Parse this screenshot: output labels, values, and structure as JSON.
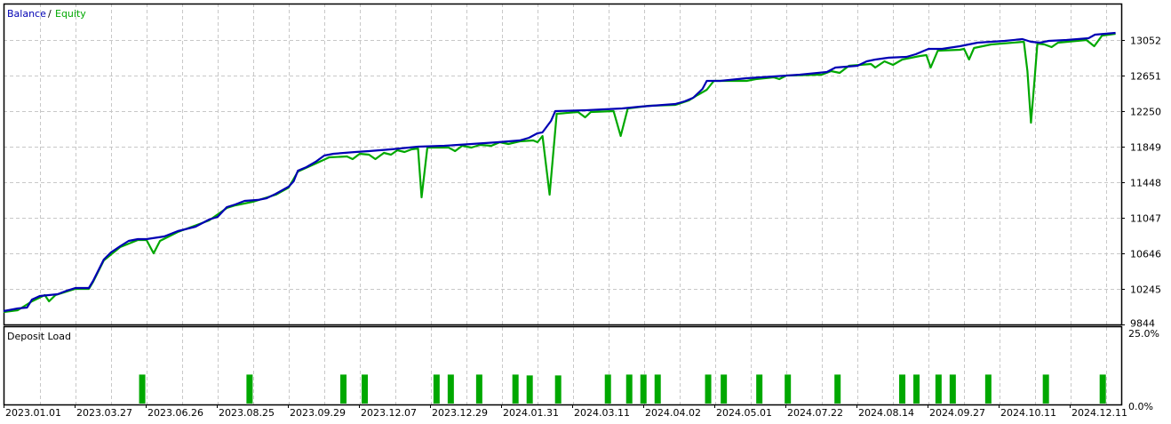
{
  "chart_data": [
    {
      "type": "line",
      "legend": {
        "items": [
          "Balance",
          "Equity"
        ],
        "separator": "/",
        "placement": "top-left"
      },
      "x_tick_labels": [
        "2023.01.01",
        "2023.03.27",
        "2023.06.26",
        "2023.08.25",
        "2023.09.29",
        "2023.12.07",
        "2023.12.29",
        "2024.01.31",
        "2024.03.11",
        "2024.04.02",
        "2024.05.01",
        "2024.07.22",
        "2024.08.14",
        "2024.09.27",
        "2024.10.11",
        "2024.12.11"
      ],
      "y_tick_labels": [
        "13052",
        "12651",
        "12250",
        "11849",
        "11448",
        "11047",
        "10646",
        "10245",
        "9844"
      ],
      "y_ticks": [
        13052,
        12651,
        12250,
        11849,
        11448,
        11047,
        10646,
        10245,
        9844
      ],
      "ylim": [
        9844,
        13463
      ],
      "xlim": [
        0,
        15.72
      ],
      "grid": true,
      "colors": {
        "Balance": "#0000b4",
        "Equity": "#00a800",
        "grid": "#c8c8c8"
      },
      "series": [
        {
          "name": "Balance",
          "points": [
            [
              0,
              9994
            ],
            [
              0.2,
              10024
            ],
            [
              0.33,
              10034
            ],
            [
              0.4,
              10125
            ],
            [
              0.51,
              10165
            ],
            [
              0.76,
              10185
            ],
            [
              0.89,
              10225
            ],
            [
              1.01,
              10255
            ],
            [
              1.2,
              10255
            ],
            [
              1.26,
              10335
            ],
            [
              1.41,
              10576
            ],
            [
              1.51,
              10656
            ],
            [
              1.64,
              10726
            ],
            [
              1.76,
              10786
            ],
            [
              1.89,
              10806
            ],
            [
              2.01,
              10806
            ],
            [
              2.26,
              10836
            ],
            [
              2.45,
              10897
            ],
            [
              2.7,
              10947
            ],
            [
              2.89,
              11027
            ],
            [
              3.01,
              11057
            ],
            [
              3.14,
              11167
            ],
            [
              3.26,
              11197
            ],
            [
              3.39,
              11237
            ],
            [
              3.58,
              11248
            ],
            [
              3.7,
              11268
            ],
            [
              3.83,
              11318
            ],
            [
              4.01,
              11398
            ],
            [
              4.08,
              11458
            ],
            [
              4.14,
              11578
            ],
            [
              4.26,
              11618
            ],
            [
              4.39,
              11679
            ],
            [
              4.51,
              11749
            ],
            [
              4.64,
              11769
            ],
            [
              4.95,
              11789
            ],
            [
              5.14,
              11799
            ],
            [
              5.45,
              11819
            ],
            [
              5.83,
              11849
            ],
            [
              6.2,
              11859
            ],
            [
              6.58,
              11879
            ],
            [
              6.95,
              11899
            ],
            [
              7.26,
              11919
            ],
            [
              7.39,
              11949
            ],
            [
              7.51,
              12000
            ],
            [
              7.58,
              12010
            ],
            [
              7.7,
              12140
            ],
            [
              7.76,
              12250
            ],
            [
              8.2,
              12260
            ],
            [
              8.7,
              12280
            ],
            [
              8.95,
              12300
            ],
            [
              9.45,
              12330
            ],
            [
              9.58,
              12360
            ],
            [
              9.7,
              12400
            ],
            [
              9.83,
              12501
            ],
            [
              9.89,
              12591
            ],
            [
              10.08,
              12591
            ],
            [
              10.45,
              12621
            ],
            [
              10.83,
              12641
            ],
            [
              11.2,
              12661
            ],
            [
              11.58,
              12691
            ],
            [
              11.7,
              12741
            ],
            [
              12.01,
              12761
            ],
            [
              12.14,
              12811
            ],
            [
              12.26,
              12831
            ],
            [
              12.45,
              12852
            ],
            [
              12.7,
              12862
            ],
            [
              12.83,
              12892
            ],
            [
              13.01,
              12952
            ],
            [
              13.2,
              12952
            ],
            [
              13.45,
              12982
            ],
            [
              13.7,
              13022
            ],
            [
              14.08,
              13042
            ],
            [
              14.33,
              13062
            ],
            [
              14.45,
              13032
            ],
            [
              14.58,
              13022
            ],
            [
              14.7,
              13042
            ],
            [
              14.95,
              13052
            ],
            [
              15.26,
              13072
            ],
            [
              15.35,
              13112
            ],
            [
              15.64,
              13132
            ]
          ]
        },
        {
          "name": "Equity",
          "points": [
            [
              0,
              9984
            ],
            [
              0.2,
              10004
            ],
            [
              0.4,
              10105
            ],
            [
              0.58,
              10175
            ],
            [
              0.64,
              10105
            ],
            [
              0.73,
              10175
            ],
            [
              0.89,
              10215
            ],
            [
              1.01,
              10245
            ],
            [
              1.2,
              10245
            ],
            [
              1.26,
              10325
            ],
            [
              1.41,
              10566
            ],
            [
              1.64,
              10716
            ],
            [
              1.89,
              10796
            ],
            [
              2.01,
              10796
            ],
            [
              2.11,
              10646
            ],
            [
              2.2,
              10786
            ],
            [
              2.45,
              10887
            ],
            [
              2.89,
              11017
            ],
            [
              3.14,
              11157
            ],
            [
              3.26,
              11187
            ],
            [
              3.51,
              11228
            ],
            [
              3.83,
              11308
            ],
            [
              4.01,
              11388
            ],
            [
              4.14,
              11568
            ],
            [
              4.39,
              11659
            ],
            [
              4.58,
              11729
            ],
            [
              4.83,
              11739
            ],
            [
              4.91,
              11709
            ],
            [
              5.01,
              11769
            ],
            [
              5.14,
              11759
            ],
            [
              5.23,
              11709
            ],
            [
              5.35,
              11779
            ],
            [
              5.45,
              11759
            ],
            [
              5.54,
              11809
            ],
            [
              5.64,
              11789
            ],
            [
              5.74,
              11819
            ],
            [
              5.83,
              11829
            ],
            [
              5.88,
              11278
            ],
            [
              5.96,
              11839
            ],
            [
              6.26,
              11839
            ],
            [
              6.35,
              11799
            ],
            [
              6.45,
              11859
            ],
            [
              6.58,
              11839
            ],
            [
              6.7,
              11869
            ],
            [
              6.86,
              11859
            ],
            [
              6.98,
              11899
            ],
            [
              7.1,
              11879
            ],
            [
              7.26,
              11909
            ],
            [
              7.45,
              11919
            ],
            [
              7.51,
              11899
            ],
            [
              7.58,
              11969
            ],
            [
              7.68,
              11308
            ],
            [
              7.78,
              12220
            ],
            [
              8.08,
              12240
            ],
            [
              8.18,
              12180
            ],
            [
              8.26,
              12240
            ],
            [
              8.58,
              12250
            ],
            [
              8.68,
              11969
            ],
            [
              8.78,
              12280
            ],
            [
              9.08,
              12310
            ],
            [
              9.45,
              12320
            ],
            [
              9.64,
              12370
            ],
            [
              9.76,
              12430
            ],
            [
              9.89,
              12491
            ],
            [
              9.99,
              12591
            ],
            [
              10.45,
              12591
            ],
            [
              10.58,
              12611
            ],
            [
              10.83,
              12631
            ],
            [
              10.91,
              12611
            ],
            [
              11.01,
              12651
            ],
            [
              11.51,
              12661
            ],
            [
              11.64,
              12701
            ],
            [
              11.76,
              12681
            ],
            [
              11.89,
              12761
            ],
            [
              12.2,
              12781
            ],
            [
              12.26,
              12741
            ],
            [
              12.39,
              12811
            ],
            [
              12.51,
              12771
            ],
            [
              12.64,
              12831
            ],
            [
              12.89,
              12872
            ],
            [
              12.98,
              12882
            ],
            [
              13.04,
              12741
            ],
            [
              13.14,
              12932
            ],
            [
              13.45,
              12942
            ],
            [
              13.51,
              12952
            ],
            [
              13.58,
              12832
            ],
            [
              13.65,
              12962
            ],
            [
              13.89,
              13002
            ],
            [
              14.35,
              13032
            ],
            [
              14.4,
              12701
            ],
            [
              14.45,
              12120
            ],
            [
              14.5,
              12601
            ],
            [
              14.54,
              13012
            ],
            [
              14.64,
              13002
            ],
            [
              14.74,
              12972
            ],
            [
              14.83,
              13022
            ],
            [
              15.23,
              13052
            ],
            [
              15.34,
              12982
            ],
            [
              15.45,
              13102
            ],
            [
              15.64,
              13122
            ]
          ]
        }
      ]
    },
    {
      "type": "bar",
      "title": "Deposit Load",
      "y_tick_labels": [
        "25.0%",
        "0.0%"
      ],
      "ylim": [
        0,
        25
      ],
      "xlim": [
        0,
        15.72
      ],
      "color": "#00a800",
      "bars": [
        [
          1.95,
          10.5
        ],
        [
          3.46,
          10.5
        ],
        [
          4.78,
          10.5
        ],
        [
          5.08,
          10.5
        ],
        [
          6.09,
          10.5
        ],
        [
          6.29,
          10.5
        ],
        [
          6.69,
          10.5
        ],
        [
          7.2,
          10.5
        ],
        [
          7.4,
          10.2
        ],
        [
          7.8,
          10.2
        ],
        [
          8.5,
          10.5
        ],
        [
          8.8,
          10.5
        ],
        [
          9.0,
          10.5
        ],
        [
          9.2,
          10.5
        ],
        [
          9.91,
          10.5
        ],
        [
          10.13,
          10.5
        ],
        [
          10.63,
          10.5
        ],
        [
          11.03,
          10.5
        ],
        [
          11.73,
          10.5
        ],
        [
          12.64,
          10.5
        ],
        [
          12.84,
          10.5
        ],
        [
          13.15,
          10.5
        ],
        [
          13.35,
          10.5
        ],
        [
          13.85,
          10.5
        ],
        [
          14.66,
          10.5
        ],
        [
          15.46,
          10.5
        ]
      ]
    }
  ]
}
